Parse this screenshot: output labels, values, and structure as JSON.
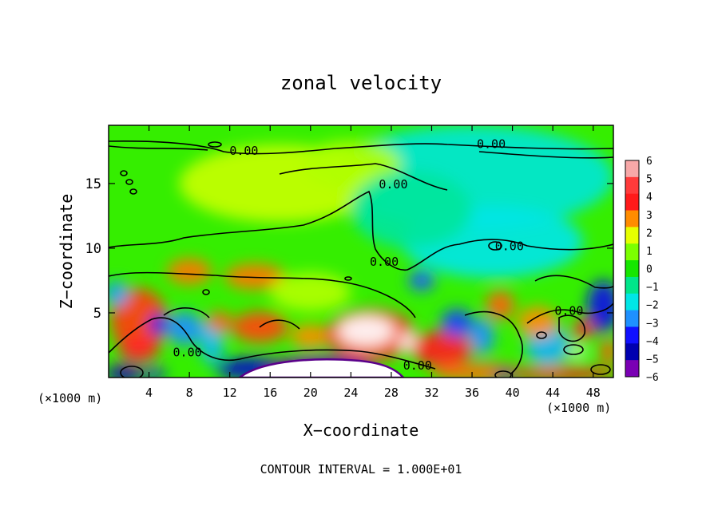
{
  "chart_data": {
    "type": "heatmap",
    "title": "zonal velocity",
    "xlabel": "X−coordinate",
    "ylabel": "Z−coordinate",
    "x_unit_left": "(×1000 m)",
    "x_unit_right": "(×1000 m)",
    "footer": "CONTOUR INTERVAL = 1.000E+01",
    "xlim": [
      0,
      50
    ],
    "ylim": [
      0,
      19.5
    ],
    "x_ticks": [
      4,
      8,
      12,
      16,
      20,
      24,
      28,
      32,
      36,
      40,
      44,
      48
    ],
    "y_ticks": [
      5,
      10,
      15
    ],
    "colorbar": {
      "range": [
        -6,
        6
      ],
      "labels": [
        "6",
        "5",
        "4",
        "3",
        "2",
        "1",
        "0",
        "−1",
        "−2",
        "−3",
        "−4",
        "−5",
        "−6"
      ],
      "values": [
        6,
        5,
        4,
        3,
        2,
        1,
        0,
        -1,
        -2,
        -3,
        -4,
        -5,
        -6
      ],
      "colors": [
        "#f7a8a8",
        "#ff3b3b",
        "#ff1a1a",
        "#ff8c00",
        "#e6ff00",
        "#7cff00",
        "#16e600",
        "#00e68a",
        "#00e6e6",
        "#1e90ff",
        "#1010ff",
        "#0000b0",
        "#7a00b4"
      ]
    },
    "contour_level_label": "0.00",
    "contour_labels": [
      {
        "text": "0.00",
        "x": 13.4,
        "y": 17.6
      },
      {
        "text": "0.00",
        "x": 37.9,
        "y": 18.1
      },
      {
        "text": "0.00",
        "x": 28.2,
        "y": 15.0
      },
      {
        "text": "0.00",
        "x": 39.7,
        "y": 10.2
      },
      {
        "text": "0.00",
        "x": 27.3,
        "y": 9.0
      },
      {
        "text": "0.00",
        "x": 45.6,
        "y": 5.2
      },
      {
        "text": "0.00",
        "x": 7.8,
        "y": 2.0
      },
      {
        "text": "0.00",
        "x": 30.6,
        "y": 1.0
      }
    ],
    "color_blobs": [
      {
        "x": 36,
        "y": 15.5,
        "rx": 14,
        "ry": 4,
        "v": -1.8
      },
      {
        "x": 38,
        "y": 10.5,
        "rx": 9,
        "ry": 2.8,
        "v": -2.0
      },
      {
        "x": 17,
        "y": 15,
        "rx": 10,
        "ry": 3,
        "v": 1.7
      },
      {
        "x": 24,
        "y": 16.5,
        "rx": 5,
        "ry": 1.8,
        "v": 1.5
      },
      {
        "x": 30,
        "y": 13,
        "rx": 6,
        "ry": 3,
        "v": -1.2
      },
      {
        "x": 8,
        "y": 8.2,
        "rx": 2.2,
        "ry": 1.0,
        "v": 3.2
      },
      {
        "x": 14.5,
        "y": 7.8,
        "rx": 3.0,
        "ry": 1.0,
        "v": 3.2
      },
      {
        "x": 20,
        "y": 6.6,
        "rx": 4,
        "ry": 1.5,
        "v": 1.5
      },
      {
        "x": 31,
        "y": 7.5,
        "rx": 1.3,
        "ry": 0.8,
        "v": -3.4
      },
      {
        "x": 3,
        "y": 4.4,
        "rx": 2.8,
        "ry": 2.5,
        "v": 3.7
      },
      {
        "x": 3.0,
        "y": 2.2,
        "rx": 2.0,
        "ry": 1.0,
        "v": 4.4
      },
      {
        "x": 5,
        "y": 4.1,
        "rx": 1.0,
        "ry": 0.8,
        "v": -4.2
      },
      {
        "x": 7.5,
        "y": 3.8,
        "rx": 1.8,
        "ry": 1.3,
        "v": -3.0
      },
      {
        "x": 10.2,
        "y": 2.8,
        "rx": 1.2,
        "ry": 1.8,
        "v": -2.5
      },
      {
        "x": 11,
        "y": 4.3,
        "rx": 1.2,
        "ry": 0.8,
        "v": 3.4
      },
      {
        "x": 15,
        "y": 3.9,
        "rx": 2.8,
        "ry": 1.2,
        "v": 3.6
      },
      {
        "x": 20,
        "y": 3.2,
        "rx": 2.0,
        "ry": 0.9,
        "v": 3.0
      },
      {
        "x": 26,
        "y": 3.3,
        "rx": 4.4,
        "ry": 2.0,
        "v": 4.4
      },
      {
        "x": 25.5,
        "y": 3.6,
        "rx": 2.8,
        "ry": 1.2,
        "v": 6.5
      },
      {
        "x": 29.8,
        "y": 2.7,
        "rx": 1.0,
        "ry": 0.8,
        "v": 6.5
      },
      {
        "x": 33,
        "y": 2.2,
        "rx": 3.0,
        "ry": 1.4,
        "v": 4.2
      },
      {
        "x": 34.5,
        "y": 4.2,
        "rx": 1.6,
        "ry": 1.1,
        "v": -3.6
      },
      {
        "x": 37,
        "y": 3.2,
        "rx": 1.2,
        "ry": 1.4,
        "v": -3.0
      },
      {
        "x": 38.8,
        "y": 5.6,
        "rx": 1.4,
        "ry": 1.1,
        "v": 3.4
      },
      {
        "x": 36.5,
        "y": 0.4,
        "rx": 4.5,
        "ry": 0.7,
        "v": 3.3
      },
      {
        "x": 45,
        "y": 0.3,
        "rx": 5.5,
        "ry": 0.5,
        "v": 4.2
      },
      {
        "x": 43.5,
        "y": 2.5,
        "rx": 2.2,
        "ry": 1.6,
        "v": -2.6
      },
      {
        "x": 47,
        "y": 3.7,
        "rx": 1.0,
        "ry": 0.8,
        "v": 4.2
      },
      {
        "x": 46.5,
        "y": 2.0,
        "rx": 0.9,
        "ry": 0.4,
        "v": 6.5
      },
      {
        "x": 49,
        "y": 5.5,
        "rx": 1.6,
        "ry": 2.0,
        "v": -4.3
      },
      {
        "x": 42.5,
        "y": 4.3,
        "rx": 2.0,
        "ry": 1.2,
        "v": 3.0
      },
      {
        "x": 0.8,
        "y": 6.5,
        "rx": 1.2,
        "ry": 1.0,
        "v": -2.8
      },
      {
        "x": 49.5,
        "y": 2.0,
        "rx": 0.8,
        "ry": 1.0,
        "v": 3.5
      },
      {
        "x": 1.5,
        "y": 0.3,
        "rx": 1.8,
        "ry": 0.7,
        "v": -5.2
      },
      {
        "x": 4.5,
        "y": 0.3,
        "rx": 1.2,
        "ry": 0.4,
        "v": -4.2
      },
      {
        "x": 14,
        "y": 0.7,
        "rx": 3.5,
        "ry": 0.8,
        "v": -4.6
      },
      {
        "x": 21,
        "y": 0.4,
        "rx": 5.5,
        "ry": 1.3,
        "v": -6.2
      },
      {
        "x": 39.2,
        "y": 0.2,
        "rx": 1.0,
        "ry": 0.4,
        "v": -5.0
      }
    ]
  }
}
